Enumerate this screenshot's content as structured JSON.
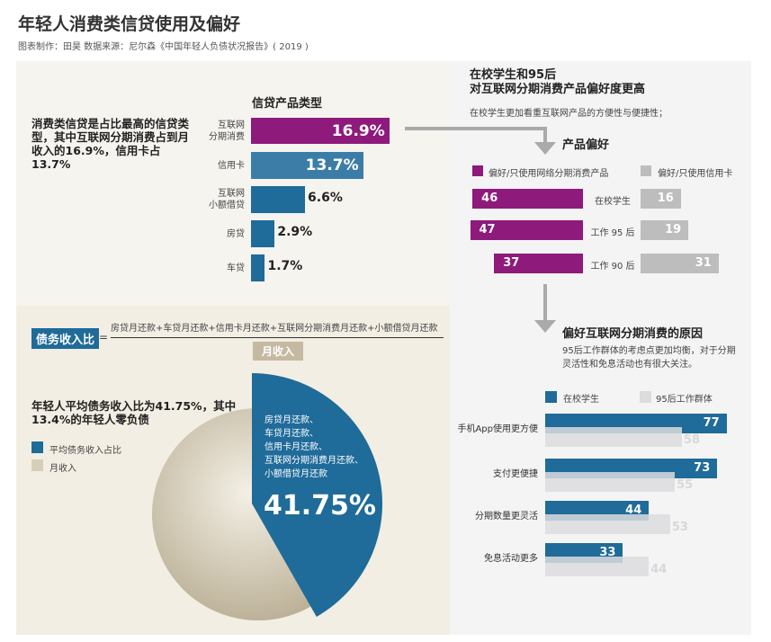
{
  "title": "年轻人消费类信贷使用及偏好",
  "subtitle": "图表制作：田昊  数据来源：尼尔森《中国年轻人负债状况报告》( 2019 )",
  "colors": {
    "purple": "#8e1a7c",
    "blue": "#1f6b99",
    "lightblue": "#3c7da8",
    "gray": "#bdbdbd",
    "lightgray": "#dcdcdf",
    "beige": "#c9bfa8",
    "tan": "#c5b9a1"
  },
  "left_note": "消费类信贷是占比最高的信贷类型，其中互联网分期消费占到月收入的16.9%，信用卡占13.7%",
  "formula": {
    "label": "债务收入比",
    "equals": "=",
    "numerator": "房贷月还款+车贷月还款+信用卡月还款+互联网分期消费月还款+小额借贷月还款",
    "denominator": "月收入"
  },
  "pie_note": "年轻人平均债务收入比为41.75%，其中13.4%的年轻人零负债",
  "pie_inner": [
    "房贷月还款、",
    "车贷月还款、",
    "信用卡月还款、",
    "互联网分期消费月还款、",
    "小额借贷月还款"
  ],
  "right_head": {
    "title1": "在校学生和95后",
    "title2": "对互联网分期消费产品偏好度更高",
    "desc": "在校学生更加看重互联网产品的方便性与便捷性；"
  },
  "reasons_head": {
    "title": "偏好互联网分期消费的原因",
    "desc1": "95后工作群体的考虑点更加均衡，对于分期",
    "desc2": "灵活性和免息活动也有很大关注。"
  },
  "chart_data": [
    {
      "type": "bar",
      "title": "信贷产品类型",
      "categories": [
        "互联网\n分期消费",
        "信用卡",
        "互联网\n小额借贷",
        "房贷",
        "车贷"
      ],
      "values": [
        16.9,
        13.7,
        6.6,
        2.9,
        1.7
      ],
      "labels": [
        "16.9%",
        "13.7%",
        "6.6%",
        "2.9%",
        "1.7%"
      ],
      "unit": "%"
    },
    {
      "type": "bar",
      "title": "产品偏好",
      "categories": [
        "在校学生",
        "工作 95 后",
        "工作 90 后"
      ],
      "series": [
        {
          "name": "偏好/只使用网络分期消费产品",
          "values": [
            46,
            47,
            37
          ]
        },
        {
          "name": "偏好/只使用信用卡",
          "values": [
            16,
            19,
            31
          ]
        }
      ]
    },
    {
      "type": "bar",
      "title": "偏好互联网分期消费的原因",
      "categories": [
        "手机App使用更方便",
        "支付更便捷",
        "分期数量更灵活",
        "免息活动更多"
      ],
      "series": [
        {
          "name": "在校学生",
          "values": [
            77,
            73,
            44,
            33
          ]
        },
        {
          "name": "95后工作群体",
          "values": [
            58,
            55,
            53,
            44
          ]
        }
      ]
    },
    {
      "type": "pie",
      "legend": [
        "平均债务收入占比",
        "月收入"
      ],
      "values": [
        41.75,
        58.25
      ],
      "label": "41.75%"
    }
  ]
}
